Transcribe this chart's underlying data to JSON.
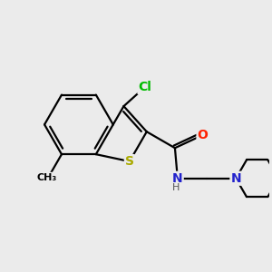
{
  "background_color": "#ebebeb",
  "bond_color": "#000000",
  "cl_color": "#00bb00",
  "s_color": "#aaaa00",
  "o_color": "#ff2000",
  "n_color": "#2222cc",
  "font_size": 9,
  "figsize": [
    3.0,
    3.0
  ],
  "dpi": 100,
  "xlim": [
    -0.5,
    6.5
  ],
  "ylim": [
    -0.5,
    5.5
  ]
}
